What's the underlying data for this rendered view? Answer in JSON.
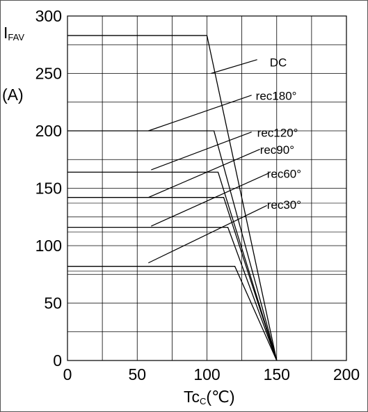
{
  "chart_data": {
    "type": "line",
    "xlabel": "Tc",
    "xlabel_unit": "(℃)",
    "ylabel": "I",
    "ylabel_sub": "FAV",
    "ylabel_unit": "(A)",
    "xlim": [
      0,
      200
    ],
    "ylim": [
      0,
      300
    ],
    "x_ticks": [
      "0",
      "50",
      "100",
      "150",
      "200"
    ],
    "y_ticks": [
      "0",
      "50",
      "100",
      "150",
      "200",
      "250",
      "300"
    ],
    "grid": true,
    "series": [
      {
        "name": "DC",
        "x": [
          0,
          100,
          150
        ],
        "y": [
          283,
          283,
          0
        ]
      },
      {
        "name": "rec180°",
        "x": [
          0,
          105,
          150
        ],
        "y": [
          200,
          200,
          0
        ]
      },
      {
        "name": "rec120°",
        "x": [
          0,
          108,
          150
        ],
        "y": [
          164,
          164,
          0
        ]
      },
      {
        "name": "rec90°",
        "x": [
          0,
          112,
          150
        ],
        "y": [
          142,
          142,
          0
        ]
      },
      {
        "name": "rec60°",
        "x": [
          0,
          115,
          150
        ],
        "y": [
          116,
          116,
          0
        ]
      },
      {
        "name": "rec30°",
        "x": [
          0,
          120,
          150
        ],
        "y": [
          82,
          82,
          0
        ]
      }
    ]
  }
}
